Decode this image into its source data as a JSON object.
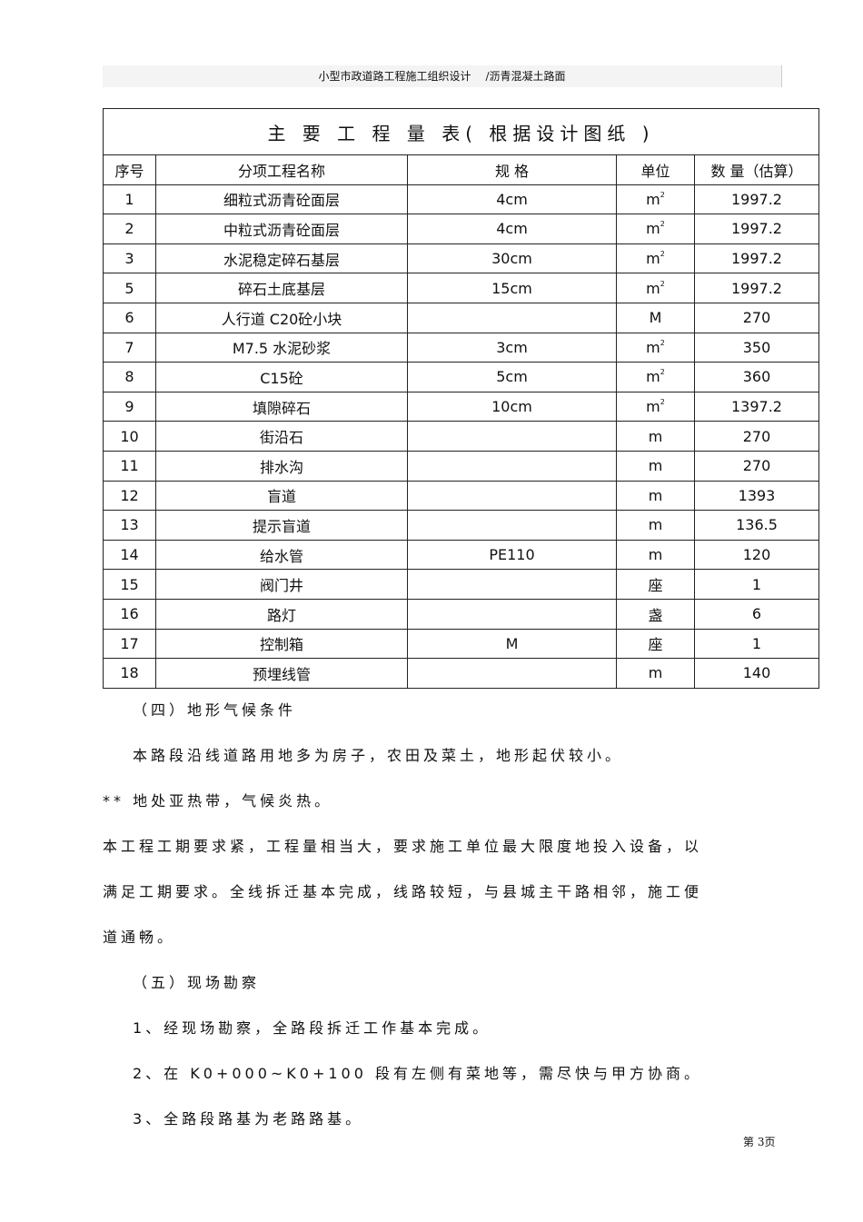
{
  "header": {
    "left": "小型市政道路工程施工组织设计",
    "right": "/沥青混凝土路面"
  },
  "table": {
    "title": "主 要 工 程 量 表( 根据设计图纸 )",
    "columns": [
      "序号",
      "分项工程名称",
      "规 格",
      "单位",
      "数 量（估算）"
    ],
    "rows": [
      [
        "1",
        "细粒式沥青砼面层",
        "4cm",
        "m2",
        "1997.2"
      ],
      [
        "2",
        "中粒式沥青砼面层",
        "4cm",
        "m2",
        "1997.2"
      ],
      [
        "3",
        "水泥稳定碎石基层",
        "30cm",
        "m2",
        "1997.2"
      ],
      [
        "5",
        "碎石土底基层",
        "15cm",
        "m2",
        "1997.2"
      ],
      [
        "6",
        "人行道 C20砼小块",
        "",
        "M",
        "270"
      ],
      [
        "7",
        "M7.5 水泥砂浆",
        "3cm",
        "m2",
        "350"
      ],
      [
        "8",
        "C15砼",
        "5cm",
        "m2",
        "360"
      ],
      [
        "9",
        "填隙碎石",
        "10cm",
        "m2",
        "1397.2"
      ],
      [
        "10",
        "街沿石",
        "",
        "m",
        "270"
      ],
      [
        "11",
        "排水沟",
        "",
        "m",
        "270"
      ],
      [
        "12",
        "盲道",
        "",
        "m",
        "1393"
      ],
      [
        "13",
        "提示盲道",
        "",
        "m",
        "136.5"
      ],
      [
        "14",
        "给水管",
        "PE110",
        "m",
        "120"
      ],
      [
        "15",
        "阀门井",
        "",
        "座",
        "1"
      ],
      [
        "16",
        "路灯",
        "",
        "盏",
        "6"
      ],
      [
        "17",
        "控制箱",
        "M",
        "座",
        "1"
      ],
      [
        "18",
        "预埋线管",
        "",
        "m",
        "140"
      ]
    ]
  },
  "paragraphs": [
    "（四）地形气候条件",
    "本路段沿线道路用地多为房子，农田及菜土，地形起伏较小。",
    "** 地处亚热带，气候炎热。",
    "本工程工期要求紧，工程量相当大，要求施工单位最大限度地投入设备，以",
    "满足工期要求。全线拆迁基本完成，线路较短，与县城主干路相邻，施工便",
    "道通畅。",
    "（五）现场勘察",
    "1、经现场勘察，全路段拆迁工作基本完成。",
    "2、在 K0+000~K0+100 段有左侧有菜地等，需尽快与甲方协商。",
    "3、全路段路基为老路路基。"
  ],
  "footer": "第 3页"
}
